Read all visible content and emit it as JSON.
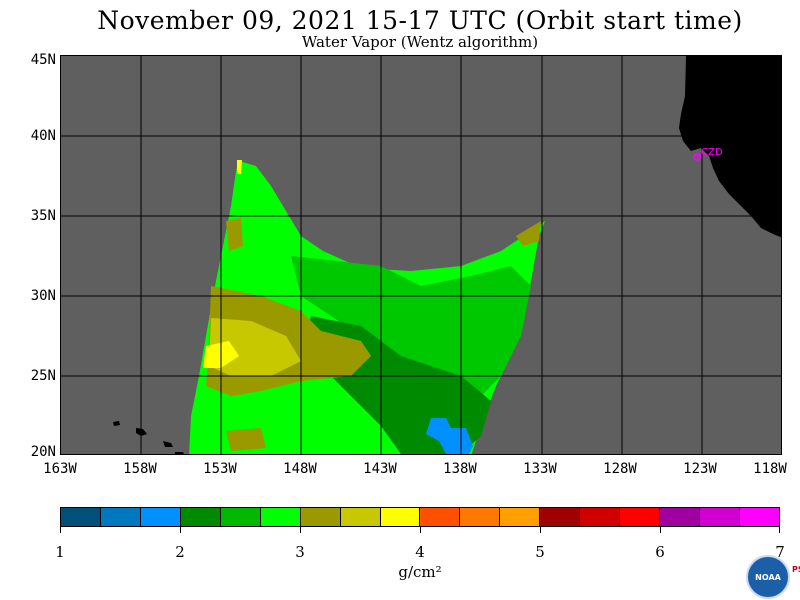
{
  "title": "November 09, 2021  15-17 UTC  (Orbit start time)",
  "subtitle": "Water Vapor (Wentz algorithm)",
  "map": {
    "lat_labels": [
      "45N",
      "40N",
      "35N",
      "30N",
      "25N",
      "20N"
    ],
    "lon_labels": [
      "163W",
      "158W",
      "153W",
      "148W",
      "143W",
      "138W",
      "133W",
      "128W",
      "123W",
      "118W"
    ],
    "lat_range": [
      20,
      45
    ],
    "lon_range": [
      -163,
      -118
    ],
    "colors": {
      "no_data": "#5f5f5f",
      "land": "#000000",
      "gridline": "#000000"
    },
    "city_label": "CZD"
  },
  "colorbar": {
    "colors": [
      "#00507a",
      "#0078c0",
      "#0090ff",
      "#008a00",
      "#00b800",
      "#00ff00",
      "#9a9a00",
      "#c8c800",
      "#ffff00",
      "#ff5000",
      "#ff7800",
      "#ffa000",
      "#a00000",
      "#d00000",
      "#ff0000",
      "#a000a0",
      "#d000d0",
      "#ff00ff"
    ],
    "tick_labels": [
      "1",
      "2",
      "3",
      "4",
      "5",
      "6",
      "7"
    ],
    "units": "g/cm²"
  },
  "logo": {
    "text": "NOAA",
    "side_text": "PSL"
  }
}
